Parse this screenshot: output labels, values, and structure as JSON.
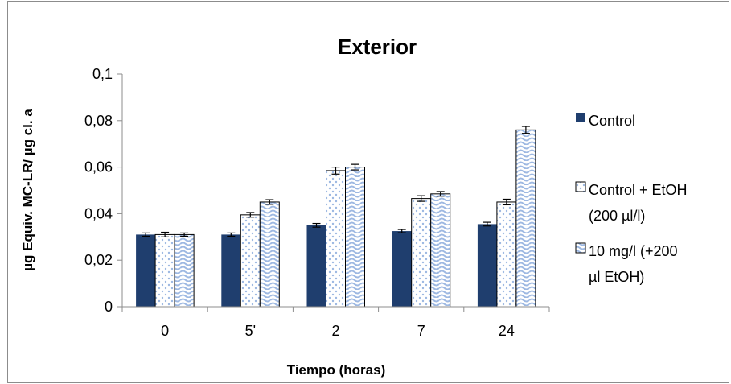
{
  "chart_data": {
    "type": "bar",
    "title": "Exterior",
    "xlabel": "Tiempo (horas)",
    "ylabel": "µg Equiv. MC-LR/ µg cl. a",
    "categories": [
      "0",
      "5'",
      "2",
      "7",
      "24"
    ],
    "ylim": [
      0,
      0.1
    ],
    "yticks": [
      "0",
      "0,02",
      "0,04",
      "0,06",
      "0,08",
      "0,1"
    ],
    "ytick_values": [
      0,
      0.02,
      0.04,
      0.06,
      0.08,
      0.1
    ],
    "grid": false,
    "legend_position": "right",
    "series": [
      {
        "name": "Control",
        "legend_lines": [
          "Control"
        ],
        "values": [
          0.031,
          0.031,
          0.035,
          0.0325,
          0.0355
        ],
        "errors": [
          0.0007,
          0.0007,
          0.0008,
          0.0007,
          0.0008
        ],
        "color": "#1F3E6E",
        "pattern": "solid"
      },
      {
        "name": "Control + EtOH (200 µl/l)",
        "legend_lines": [
          "Control + EtOH",
          "(200 µl/l)"
        ],
        "values": [
          0.031,
          0.0395,
          0.0585,
          0.0465,
          0.045
        ],
        "errors": [
          0.001,
          0.001,
          0.0015,
          0.0012,
          0.0012
        ],
        "color": "#9DB8E2",
        "pattern": "dots"
      },
      {
        "name": "10 mg/l (+200 µl EtOH)",
        "legend_lines": [
          "10 mg/l (+200",
          "µl EtOH)"
        ],
        "values": [
          0.031,
          0.045,
          0.06,
          0.0485,
          0.076
        ],
        "errors": [
          0.0007,
          0.001,
          0.0012,
          0.001,
          0.0015
        ],
        "color": "#9DB8E2",
        "pattern": "waves"
      }
    ]
  }
}
